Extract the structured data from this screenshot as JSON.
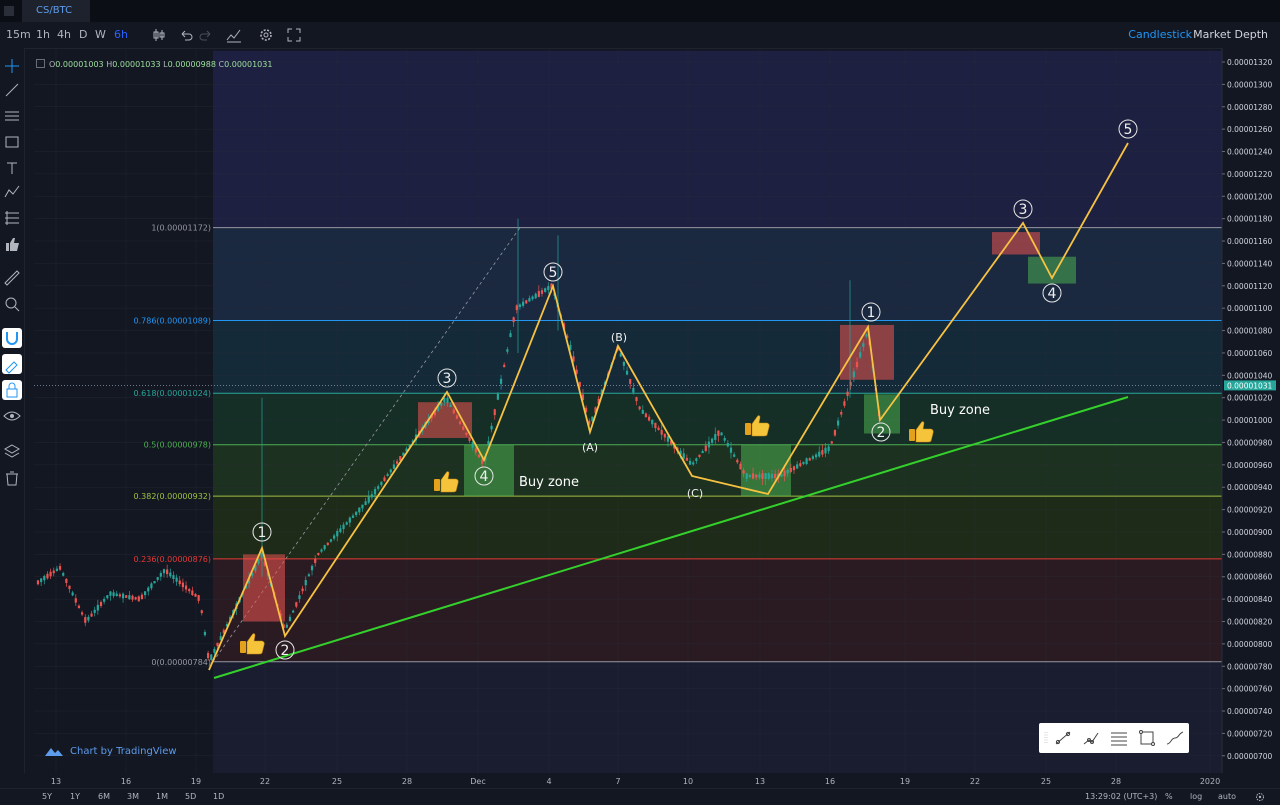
{
  "tab": {
    "label": "CS/BTC"
  },
  "toolbar": {
    "intervals": [
      {
        "label": "15m",
        "active": false
      },
      {
        "label": "1h",
        "active": false
      },
      {
        "label": "4h",
        "active": false
      },
      {
        "label": "D",
        "active": false
      },
      {
        "label": "W",
        "active": false
      },
      {
        "label": "6h",
        "active": true
      }
    ],
    "chart_type_label": "Candlestick",
    "market_depth_label": "Market Depth",
    "icons": [
      "candle-style-icon",
      "undo-icon",
      "redo-icon",
      "indicators-icon",
      "settings-icon",
      "fullscreen-icon"
    ]
  },
  "left_tools": [
    "crosshair-icon",
    "trend-line-icon",
    "horizontal-lines-icon",
    "rectangle-icon",
    "text-icon",
    "pattern-icon",
    "fib-icon",
    "thumb-icon",
    "ruler-icon",
    "zoom-icon",
    "magnet-icon",
    "lock-drawing-icon",
    "lock-icon",
    "eye-icon",
    "layers-icon",
    "trash-icon"
  ],
  "ohlc": {
    "o_label": "O",
    "o": "0.00001003",
    "h_label": "H",
    "h": "0.00001033",
    "l_label": "L",
    "l": "0.00000988",
    "c_label": "C",
    "c": "0.00001031"
  },
  "price_axis": {
    "labels": [
      "0.00001320",
      "0.00001300",
      "0.00001280",
      "0.00001260",
      "0.00001240",
      "0.00001220",
      "0.00001200",
      "0.00001180",
      "0.00001160",
      "0.00001140",
      "0.00001120",
      "0.00001100",
      "0.00001080",
      "0.00001060",
      "0.00001040",
      "0.00001020",
      "0.00001000",
      "0.00000980",
      "0.00000960",
      "0.00000940",
      "0.00000920",
      "0.00000900",
      "0.00000880",
      "0.00000860",
      "0.00000840",
      "0.00000820",
      "0.00000800",
      "0.00000780",
      "0.00000760",
      "0.00000740",
      "0.00000720",
      "0.00000700"
    ],
    "current_price": "0.00001031"
  },
  "time_axis": {
    "labels": [
      "13",
      "16",
      "19",
      "22",
      "25",
      "28",
      "Dec",
      "4",
      "7",
      "10",
      "13",
      "16",
      "19",
      "22",
      "25",
      "28",
      "2020"
    ]
  },
  "fib_levels": [
    {
      "label": "1(0.00001172)",
      "color": "#9598a1"
    },
    {
      "label": "0.786(0.00001089)",
      "color": "#2196f3"
    },
    {
      "label": "0.618(0.00001024)",
      "color": "#26a69a"
    },
    {
      "label": "0.5(0.00000978)",
      "color": "#4caf50"
    },
    {
      "label": "0.382(0.00000932)",
      "color": "#a0c040"
    },
    {
      "label": "0.236(0.00000876)",
      "color": "#e53935"
    },
    {
      "label": "0(0.00000784)",
      "color": "#9598a1"
    }
  ],
  "wave_labels": [
    "1",
    "2",
    "3",
    "4",
    "5",
    "(A)",
    "(B)",
    "(C)",
    "1",
    "2",
    "3",
    "4",
    "5"
  ],
  "annotations": {
    "buy_zone_1": "Buy zone",
    "buy_zone_2": "Buy zone"
  },
  "watermark": "Chart by TradingView",
  "bottom": {
    "ranges": [
      "5Y",
      "1Y",
      "6M",
      "3M",
      "1M",
      "5D",
      "1D"
    ],
    "time": "13:29:02 (UTC+3)",
    "percent": "%",
    "log": "log",
    "auto": "auto"
  },
  "colors": {
    "bull": "#26a69a",
    "bear": "#ef5350",
    "wave_line": "#f7c242",
    "trend_line": "#34d12c",
    "accent": "#2962ff"
  }
}
